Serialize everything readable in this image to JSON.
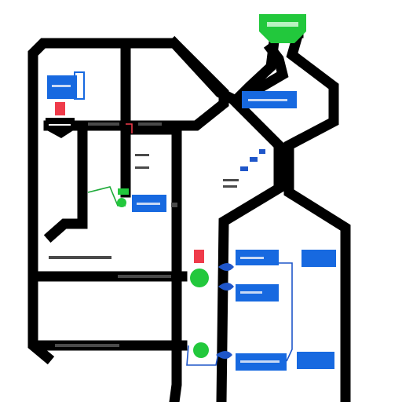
{
  "diagram": {
    "kind": "pipe-network schematic",
    "colors": {
      "background": "#ffffff",
      "pipe": "#000000",
      "blue_block": "#1769e0",
      "green_node": "#22c83c",
      "red_marker": "#ef3b4a",
      "label_text": "#c8d9f5",
      "wire_green": "#1faa3a",
      "wire_blue": "#1f56c9"
    },
    "icons": {
      "valve": "funnel-valve-icon",
      "node": "green-circle-node-icon",
      "gauge": "blue-gauge-icon",
      "marker": "red-square-marker-icon"
    }
  }
}
